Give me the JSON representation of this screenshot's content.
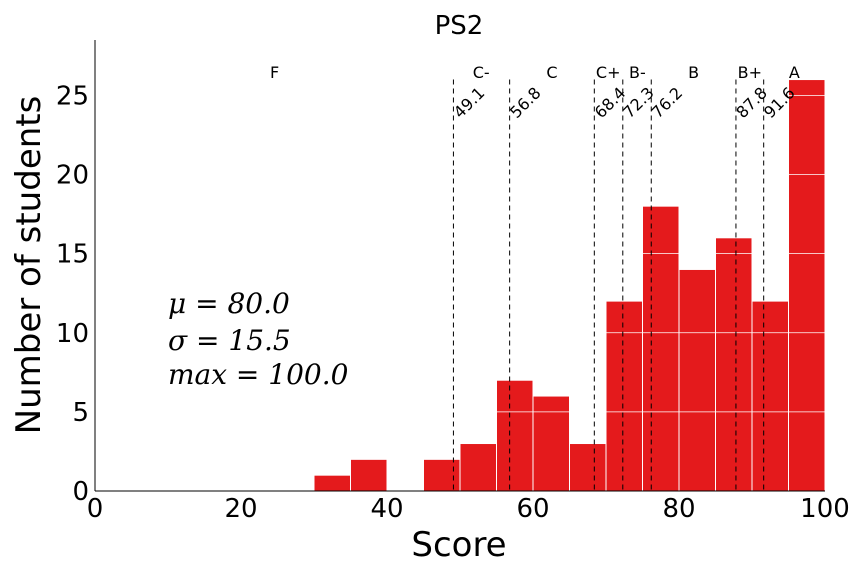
{
  "chart_data": {
    "type": "bar",
    "title": "PS2",
    "xlabel": "Score",
    "ylabel": "Number of students",
    "xlim": [
      0,
      100
    ],
    "ylim": [
      0,
      28.5
    ],
    "xticks": [
      0,
      20,
      40,
      60,
      80,
      100
    ],
    "yticks": [
      0,
      5,
      10,
      15,
      20,
      25
    ],
    "grid": "horizontal, white",
    "bar_color": "#e41a1c",
    "bins": [
      {
        "x0": 30,
        "x1": 35,
        "value": 1
      },
      {
        "x0": 35,
        "x1": 40,
        "value": 2
      },
      {
        "x0": 40,
        "x1": 45,
        "value": 0
      },
      {
        "x0": 45,
        "x1": 50,
        "value": 2
      },
      {
        "x0": 50,
        "x1": 55,
        "value": 3
      },
      {
        "x0": 55,
        "x1": 60,
        "value": 7
      },
      {
        "x0": 60,
        "x1": 65,
        "value": 6
      },
      {
        "x0": 65,
        "x1": 70,
        "value": 3
      },
      {
        "x0": 70,
        "x1": 75,
        "value": 12
      },
      {
        "x0": 75,
        "x1": 80,
        "value": 18
      },
      {
        "x0": 80,
        "x1": 85,
        "value": 14
      },
      {
        "x0": 85,
        "x1": 90,
        "value": 16
      },
      {
        "x0": 90,
        "x1": 95,
        "value": 12
      },
      {
        "x0": 95,
        "x1": 100,
        "value": 26
      }
    ],
    "cutoffs": [
      {
        "value": 49.1,
        "label": "49.1"
      },
      {
        "value": 56.8,
        "label": "56.8"
      },
      {
        "value": 68.4,
        "label": "68.4"
      },
      {
        "value": 72.3,
        "label": "72.3"
      },
      {
        "value": 76.2,
        "label": "76.2"
      },
      {
        "value": 87.8,
        "label": "87.8"
      },
      {
        "value": 91.6,
        "label": "91.6"
      }
    ],
    "grades": [
      {
        "label": "F",
        "x": 24.6
      },
      {
        "label": "C-",
        "x": 52.9
      },
      {
        "label": "C",
        "x": 62.6
      },
      {
        "label": "C+",
        "x": 70.3
      },
      {
        "label": "B-",
        "x": 74.3
      },
      {
        "label": "B",
        "x": 82.0
      },
      {
        "label": "B+",
        "x": 89.7
      },
      {
        "label": "A",
        "x": 95.8
      }
    ],
    "stats": {
      "mean": "μ = 80.0",
      "sigma": "σ = 15.5",
      "max": "max = 100.0"
    }
  }
}
